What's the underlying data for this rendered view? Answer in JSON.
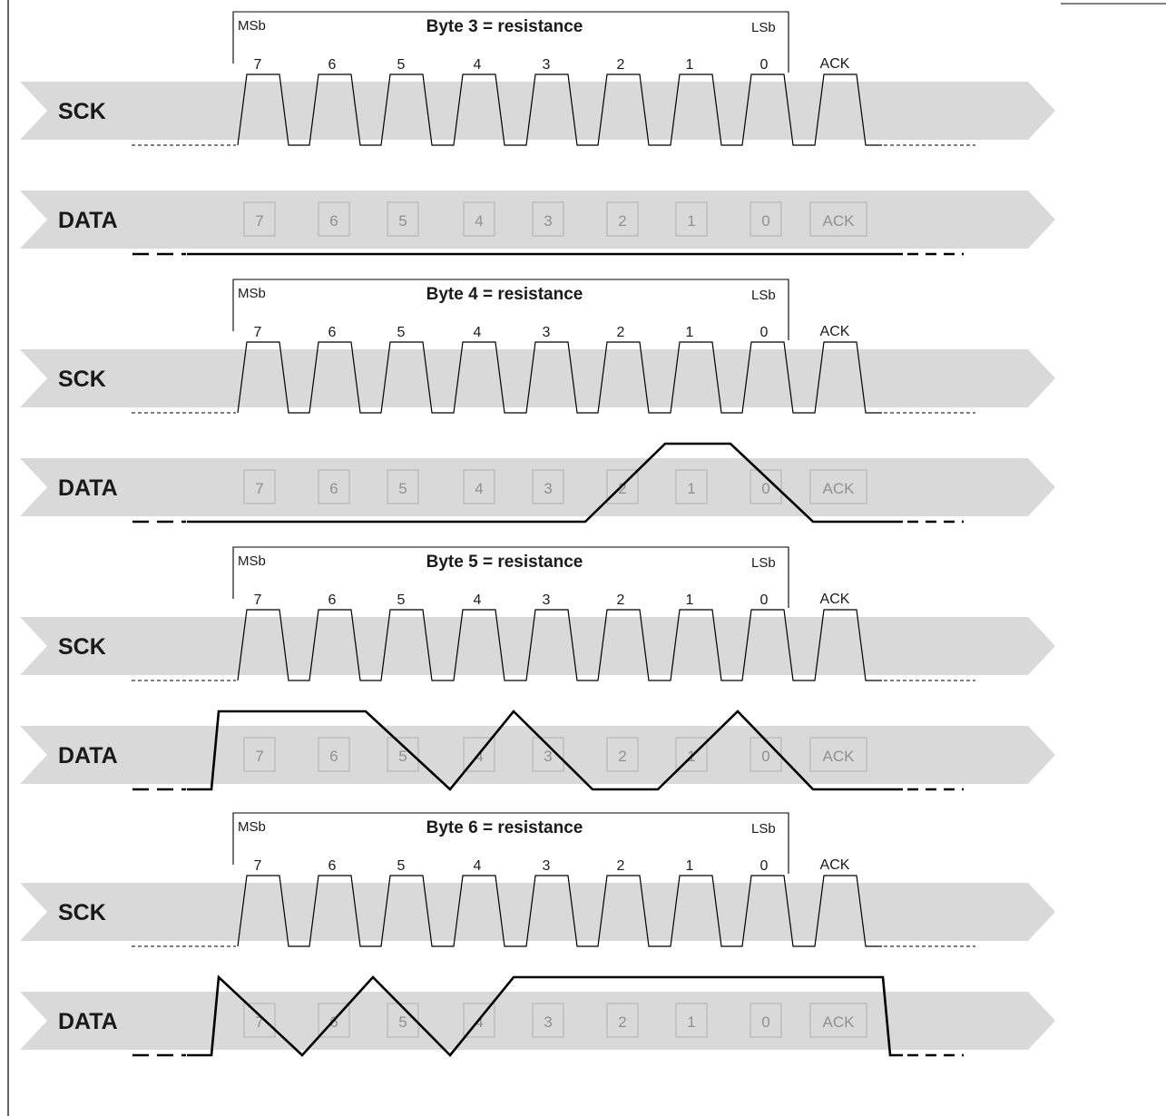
{
  "labels": {
    "sck": "SCK",
    "data": "DATA",
    "msb": "MSb",
    "lsb": "LSb",
    "ack": "ACK"
  },
  "bits": [
    "7",
    "6",
    "5",
    "4",
    "3",
    "2",
    "1",
    "0"
  ],
  "colors": {
    "band": "#d9d9d9",
    "line": "#000000",
    "box_stroke": "#b0b0b0",
    "box_text": "#909090"
  },
  "bytes": [
    {
      "title": "Byte 3 = resistance",
      "data_bits": [
        0,
        0,
        0,
        0,
        0,
        0,
        0,
        0
      ],
      "ack": 0
    },
    {
      "title": "Byte 4 = resistance",
      "data_bits": [
        0,
        0,
        0,
        0,
        0,
        0,
        1,
        1
      ],
      "ack": 0
    },
    {
      "title": "Byte 5 = resistance",
      "data_bits": [
        1,
        1,
        1,
        0,
        1,
        0,
        0,
        1
      ],
      "ack": 0
    },
    {
      "title": "Byte 6 = resistance",
      "data_bits": [
        1,
        0,
        1,
        0,
        1,
        1,
        1,
        1
      ],
      "ack": 1
    }
  ]
}
